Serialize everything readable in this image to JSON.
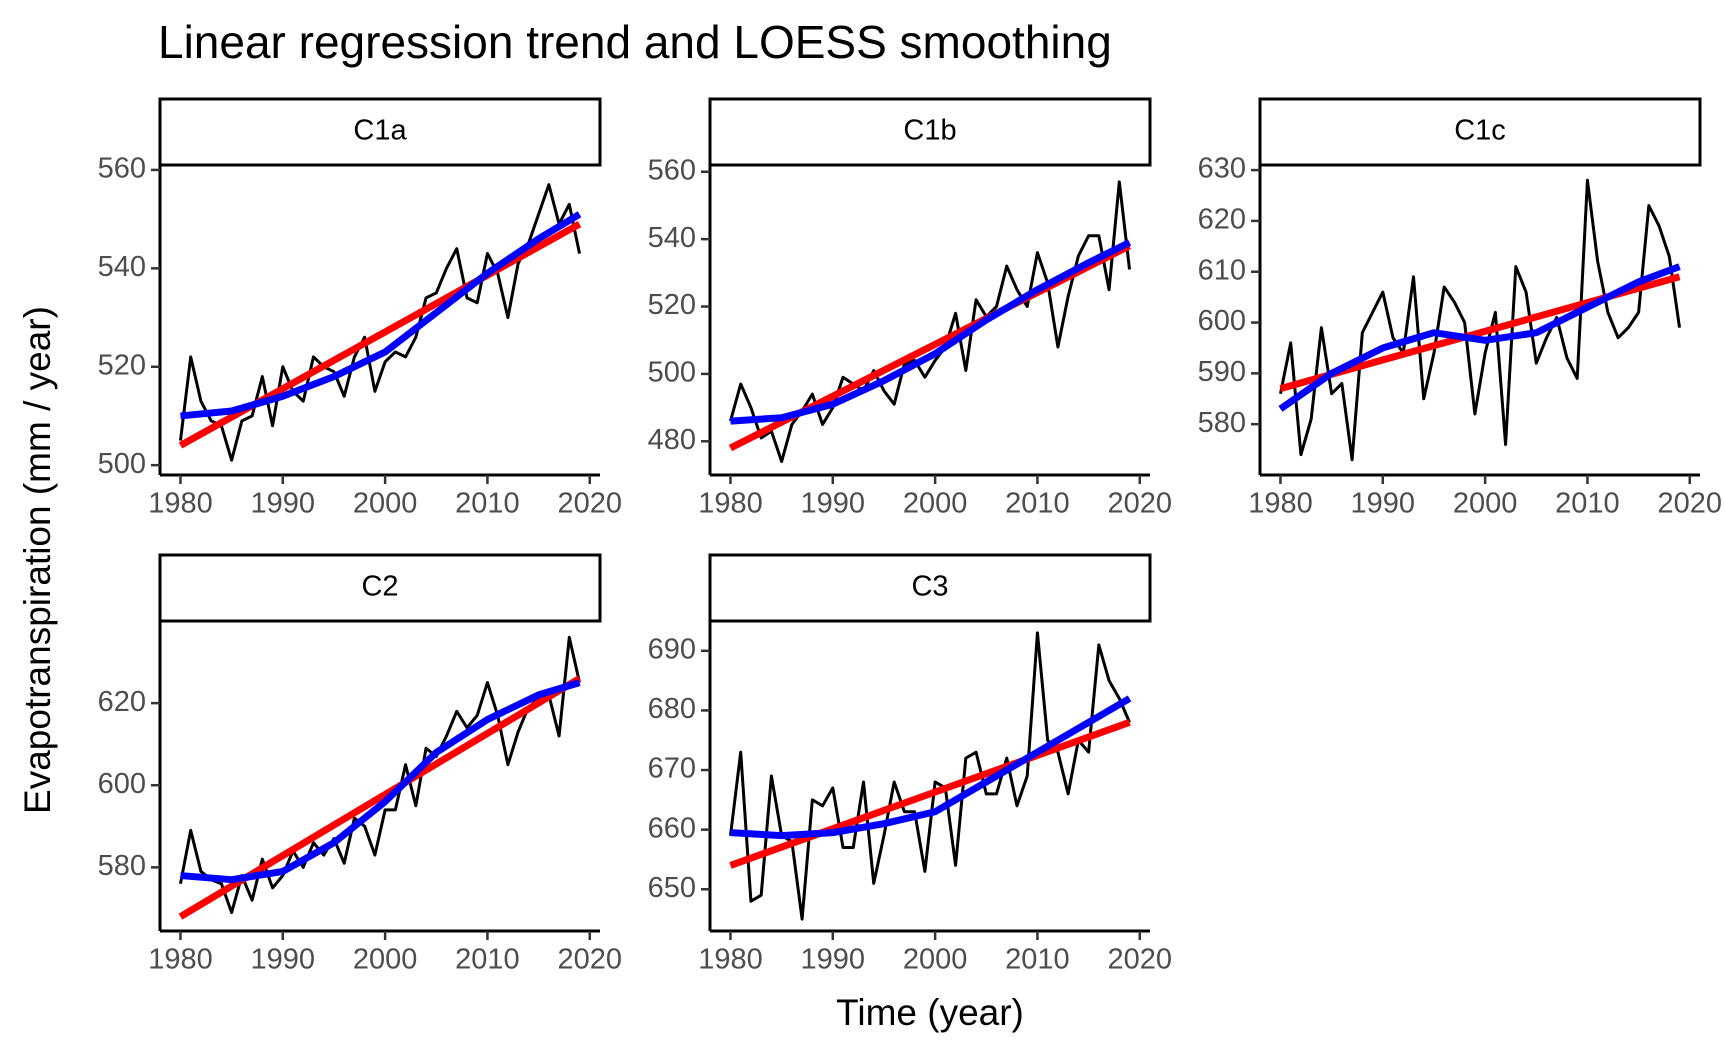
{
  "title": "Linear regression trend and LOESS smoothing",
  "xlabel": "Time (year)",
  "ylabel": "Evapotranspiration (mm / year)",
  "chart_data": [
    {
      "type": "line",
      "title": "C1a",
      "x": [
        1980,
        1981,
        1982,
        1983,
        1984,
        1985,
        1986,
        1987,
        1988,
        1989,
        1990,
        1991,
        1992,
        1993,
        1994,
        1995,
        1996,
        1997,
        1998,
        1999,
        2000,
        2001,
        2002,
        2003,
        2004,
        2005,
        2006,
        2007,
        2008,
        2009,
        2010,
        2011,
        2012,
        2013,
        2014,
        2015,
        2016,
        2017,
        2018,
        2019
      ],
      "series": [
        {
          "color": "#000000",
          "values": [
            505,
            522,
            513,
            509,
            508,
            501,
            509,
            510,
            518,
            508,
            520,
            515,
            513,
            522,
            520,
            519,
            514,
            522,
            526,
            515,
            521,
            523,
            522,
            526,
            534,
            535,
            540,
            544,
            534,
            533,
            543,
            539,
            530,
            541,
            545,
            551,
            557,
            549,
            553,
            543
          ]
        },
        {
          "color": "#ff0000",
          "x": [
            1980,
            2019
          ],
          "values": [
            504,
            549
          ]
        },
        {
          "color": "#0000ff",
          "x": [
            1980,
            1985,
            1990,
            1995,
            2000,
            2005,
            2010,
            2015,
            2019
          ],
          "values": [
            510,
            511,
            514,
            518,
            523,
            531,
            539,
            546,
            551
          ]
        }
      ],
      "xlim": [
        1978,
        2021
      ],
      "ylim": [
        498,
        561
      ],
      "xticks": [
        1980,
        1990,
        2000,
        2010,
        2020
      ],
      "yticks": [
        500,
        520,
        540,
        560
      ]
    },
    {
      "type": "line",
      "title": "C1b",
      "x": [
        1980,
        1981,
        1982,
        1983,
        1984,
        1985,
        1986,
        1987,
        1988,
        1989,
        1990,
        1991,
        1992,
        1993,
        1994,
        1995,
        1996,
        1997,
        1998,
        1999,
        2000,
        2001,
        2002,
        2003,
        2004,
        2005,
        2006,
        2007,
        2008,
        2009,
        2010,
        2011,
        2012,
        2013,
        2014,
        2015,
        2016,
        2017,
        2018,
        2019
      ],
      "series": [
        {
          "color": "#000000",
          "values": [
            486,
            497,
            490,
            481,
            483,
            474,
            485,
            489,
            494,
            485,
            490,
            499,
            497,
            495,
            501,
            495,
            491,
            503,
            504,
            499,
            504,
            508,
            518,
            501,
            522,
            517,
            520,
            532,
            525,
            520,
            536,
            527,
            508,
            523,
            535,
            541,
            541,
            525,
            557,
            531
          ]
        },
        {
          "color": "#ff0000",
          "x": [
            1980,
            2019
          ],
          "values": [
            478,
            538
          ]
        },
        {
          "color": "#0000ff",
          "x": [
            1980,
            1985,
            1990,
            1995,
            2000,
            2005,
            2010,
            2015,
            2019
          ],
          "values": [
            486,
            487,
            491,
            498,
            506,
            516,
            525,
            533,
            539
          ]
        }
      ],
      "xlim": [
        1978,
        2021
      ],
      "ylim": [
        470,
        562
      ],
      "xticks": [
        1980,
        1990,
        2000,
        2010,
        2020
      ],
      "yticks": [
        480,
        500,
        520,
        540,
        560
      ]
    },
    {
      "type": "line",
      "title": "C1c",
      "x": [
        1980,
        1981,
        1982,
        1983,
        1984,
        1985,
        1986,
        1987,
        1988,
        1989,
        1990,
        1991,
        1992,
        1993,
        1994,
        1995,
        1996,
        1997,
        1998,
        1999,
        2000,
        2001,
        2002,
        2003,
        2004,
        2005,
        2006,
        2007,
        2008,
        2009,
        2010,
        2011,
        2012,
        2013,
        2014,
        2015,
        2016,
        2017,
        2018,
        2019
      ],
      "series": [
        {
          "color": "#000000",
          "values": [
            586,
            596,
            574,
            581,
            599,
            586,
            588,
            573,
            598,
            602,
            606,
            597,
            594,
            609,
            585,
            594,
            607,
            604,
            600,
            582,
            594,
            602,
            576,
            611,
            606,
            592,
            597,
            601,
            593,
            589,
            628,
            612,
            602,
            597,
            599,
            602,
            623,
            619,
            613,
            599
          ]
        },
        {
          "color": "#ff0000",
          "x": [
            1980,
            2019
          ],
          "values": [
            587,
            609
          ]
        },
        {
          "color": "#0000ff",
          "x": [
            1980,
            1985,
            1990,
            1995,
            2000,
            2005,
            2010,
            2015,
            2019
          ],
          "values": [
            583,
            590,
            595,
            598,
            596.5,
            598,
            603,
            608,
            611
          ]
        }
      ],
      "xlim": [
        1978,
        2021
      ],
      "ylim": [
        570,
        631
      ],
      "xticks": [
        1980,
        1990,
        2000,
        2010,
        2020
      ],
      "yticks": [
        580,
        590,
        600,
        610,
        620,
        630
      ]
    },
    {
      "type": "line",
      "title": "C2",
      "x": [
        1980,
        1981,
        1982,
        1983,
        1984,
        1985,
        1986,
        1987,
        1988,
        1989,
        1990,
        1991,
        1992,
        1993,
        1994,
        1995,
        1996,
        1997,
        1998,
        1999,
        2000,
        2001,
        2002,
        2003,
        2004,
        2005,
        2006,
        2007,
        2008,
        2009,
        2010,
        2011,
        2012,
        2013,
        2014,
        2015,
        2016,
        2017,
        2018,
        2019
      ],
      "series": [
        {
          "color": "#000000",
          "values": [
            576,
            589,
            579,
            577,
            576,
            569,
            578,
            572,
            582,
            575,
            578,
            584,
            580,
            586,
            583,
            587,
            581,
            592,
            590,
            583,
            594,
            594,
            605,
            595,
            609,
            607,
            612,
            618,
            614,
            617,
            625,
            617,
            605,
            613,
            619,
            621,
            622,
            612,
            636,
            625
          ]
        },
        {
          "color": "#ff0000",
          "x": [
            1980,
            2019
          ],
          "values": [
            568,
            626
          ]
        },
        {
          "color": "#0000ff",
          "x": [
            1980,
            1985,
            1990,
            1995,
            2000,
            2005,
            2010,
            2015,
            2019
          ],
          "values": [
            578,
            577,
            579,
            586,
            596,
            608,
            616,
            622,
            625
          ]
        }
      ],
      "xlim": [
        1978,
        2021
      ],
      "ylim": [
        564.5,
        640
      ],
      "xticks": [
        1980,
        1990,
        2000,
        2010,
        2020
      ],
      "yticks": [
        580,
        600,
        620
      ]
    },
    {
      "type": "line",
      "title": "C3",
      "x": [
        1980,
        1981,
        1982,
        1983,
        1984,
        1985,
        1986,
        1987,
        1988,
        1989,
        1990,
        1991,
        1992,
        1993,
        1994,
        1995,
        1996,
        1997,
        1998,
        1999,
        2000,
        2001,
        2002,
        2003,
        2004,
        2005,
        2006,
        2007,
        2008,
        2009,
        2010,
        2011,
        2012,
        2013,
        2014,
        2015,
        2016,
        2017,
        2018,
        2019
      ],
      "series": [
        {
          "color": "#000000",
          "values": [
            659,
            673,
            648,
            649,
            669,
            659,
            658,
            645,
            665,
            664,
            667,
            657,
            657,
            668,
            651,
            659,
            668,
            663,
            663,
            653,
            668,
            667,
            654,
            672,
            673,
            666,
            666,
            672,
            664,
            669,
            693,
            675,
            673,
            666,
            675,
            673,
            691,
            685,
            682,
            678
          ]
        },
        {
          "color": "#ff0000",
          "x": [
            1980,
            2019
          ],
          "values": [
            654,
            678
          ]
        },
        {
          "color": "#0000ff",
          "x": [
            1980,
            1985,
            1990,
            1995,
            2000,
            2005,
            2010,
            2015,
            2019
          ],
          "values": [
            659.5,
            659,
            659.5,
            661,
            663,
            668,
            673,
            678,
            682
          ]
        }
      ],
      "xlim": [
        1978,
        2021
      ],
      "ylim": [
        643,
        695
      ],
      "xticks": [
        1980,
        1990,
        2000,
        2010,
        2020
      ],
      "yticks": [
        650,
        660,
        670,
        680,
        690
      ]
    }
  ]
}
